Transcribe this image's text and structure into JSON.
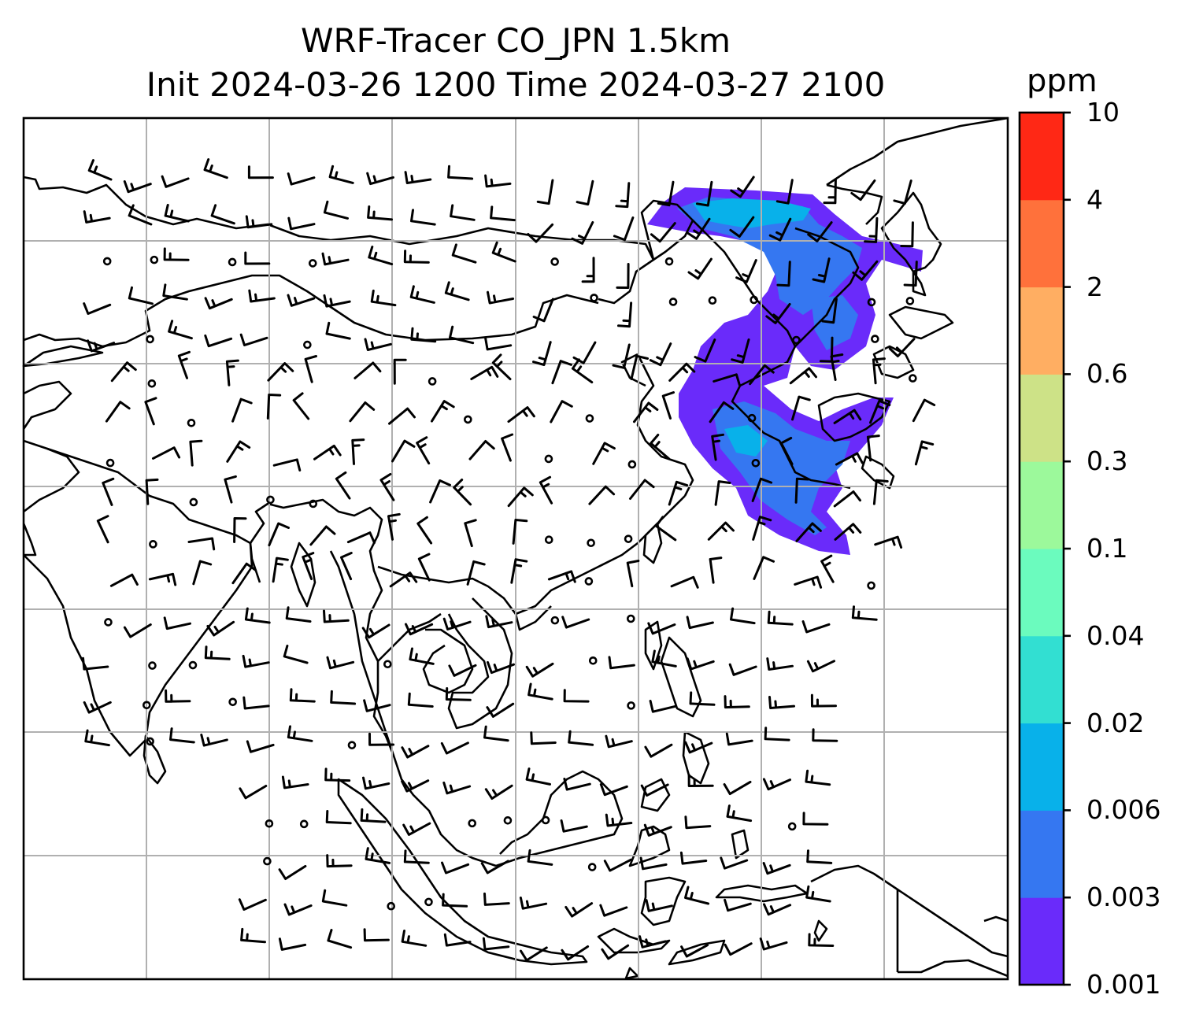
{
  "title_line1": "WRF-Tracer CO_JPN 1.5km",
  "title_line2": "Init 2024-03-26 1200 Time 2024-03-27 2100",
  "colorbar": {
    "unit": "ppm",
    "levels": [
      "0.001",
      "0.003",
      "0.006",
      "0.02",
      "0.04",
      "0.1",
      "0.3",
      "0.6",
      "2",
      "4",
      "10"
    ],
    "colors": [
      "#6a2bfa",
      "#3577f1",
      "#08b1ea",
      "#32dfd2",
      "#6bfbbe",
      "#9cf99b",
      "#cde287",
      "#ffae62",
      "#ff713b",
      "#ff2815"
    ]
  },
  "map": {
    "gridline_color": "#b0b0b0",
    "coastline_color": "#000000",
    "wind_barb_color": "#000000",
    "tracer_plume_colors": [
      "#6a2bfa",
      "#3577f1",
      "#08b1ea"
    ]
  }
}
